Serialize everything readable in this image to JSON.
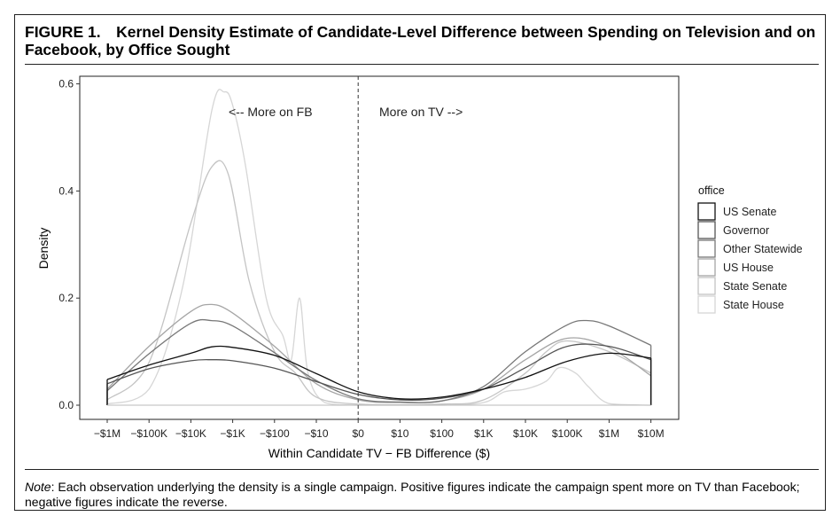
{
  "figure": {
    "title": "FIGURE 1. Kernel Density Estimate of Candidate-Level Difference between Spending on Television and on Facebook, by Office Sought",
    "note_label": "Note",
    "note_text": ": Each observation underlying the density is a single campaign. Positive figures indicate the campaign spent more on TV than Facebook; negative figures indicate the reverse."
  },
  "chart_data": {
    "type": "line",
    "title": "",
    "xlabel": "Within Candidate TV − FB Difference ($)",
    "ylabel": "Density",
    "x_tick_labels": [
      "−$1M",
      "−$100K",
      "−$10K",
      "−$1K",
      "−$100",
      "−$10",
      "$0",
      "$10",
      "$100",
      "$1K",
      "$10K",
      "$100K",
      "$1M",
      "$10M"
    ],
    "x_scale": "pseudo-log (signed), tick positions indexed 0-13",
    "xlim": [
      0,
      13
    ],
    "ylim": [
      0,
      0.6
    ],
    "y_ticks": [
      "0.0",
      "0.2",
      "0.4",
      "0.6"
    ],
    "y_tick_values": [
      0.0,
      0.2,
      0.4,
      0.6
    ],
    "reference_line": {
      "x": 6,
      "style": "dashed"
    },
    "annotations": [
      "<-- More on FB",
      "More on TV -->"
    ],
    "grid": false,
    "legend": {
      "title": "office",
      "position": "right"
    },
    "series": [
      {
        "name": "US Senate",
        "color": "#111111",
        "points": [
          [
            0,
            0.048
          ],
          [
            1,
            0.075
          ],
          [
            2,
            0.097
          ],
          [
            2.5,
            0.109
          ],
          [
            3,
            0.108
          ],
          [
            4,
            0.093
          ],
          [
            5,
            0.059
          ],
          [
            6,
            0.025
          ],
          [
            7,
            0.012
          ],
          [
            8,
            0.015
          ],
          [
            9,
            0.03
          ],
          [
            10,
            0.052
          ],
          [
            11,
            0.082
          ],
          [
            12,
            0.097
          ],
          [
            13,
            0.088
          ]
        ]
      },
      {
        "name": "Governor",
        "color": "#555555",
        "points": [
          [
            0,
            0.04
          ],
          [
            1,
            0.068
          ],
          [
            2,
            0.083
          ],
          [
            2.5,
            0.085
          ],
          [
            3,
            0.083
          ],
          [
            4,
            0.069
          ],
          [
            5,
            0.044
          ],
          [
            6,
            0.02
          ],
          [
            7,
            0.01
          ],
          [
            8,
            0.013
          ],
          [
            9,
            0.03
          ],
          [
            10,
            0.07
          ],
          [
            11,
            0.11
          ],
          [
            12,
            0.11
          ],
          [
            13,
            0.085
          ]
        ]
      },
      {
        "name": "Other Statewide",
        "color": "#777777",
        "points": [
          [
            0,
            0.027
          ],
          [
            1,
            0.096
          ],
          [
            2,
            0.153
          ],
          [
            2.5,
            0.158
          ],
          [
            3,
            0.148
          ],
          [
            4,
            0.098
          ],
          [
            5,
            0.046
          ],
          [
            6,
            0.012
          ],
          [
            7,
            0.006
          ],
          [
            8,
            0.008
          ],
          [
            9,
            0.035
          ],
          [
            10,
            0.1
          ],
          [
            11,
            0.15
          ],
          [
            11.5,
            0.158
          ],
          [
            12,
            0.148
          ],
          [
            13,
            0.112
          ]
        ]
      },
      {
        "name": "US House",
        "color": "#a5a5a5",
        "points": [
          [
            0,
            0.03
          ],
          [
            1,
            0.11
          ],
          [
            2,
            0.175
          ],
          [
            2.5,
            0.188
          ],
          [
            3,
            0.172
          ],
          [
            4,
            0.11
          ],
          [
            5,
            0.04
          ],
          [
            6,
            0.01
          ],
          [
            7,
            0.005
          ],
          [
            8,
            0.008
          ],
          [
            9,
            0.03
          ],
          [
            10,
            0.085
          ],
          [
            11,
            0.125
          ],
          [
            12,
            0.108
          ],
          [
            13,
            0.055
          ]
        ]
      },
      {
        "name": "State Senate",
        "color": "#c4c4c4",
        "points": [
          [
            0,
            0.01
          ],
          [
            1,
            0.08
          ],
          [
            2,
            0.34
          ],
          [
            2.5,
            0.445
          ],
          [
            2.9,
            0.43
          ],
          [
            3.4,
            0.23
          ],
          [
            4,
            0.1
          ],
          [
            4.5,
            0.06
          ],
          [
            5,
            0.015
          ],
          [
            6,
            0.002
          ],
          [
            8,
            0.002
          ],
          [
            9,
            0.01
          ],
          [
            10,
            0.06
          ],
          [
            10.5,
            0.1
          ],
          [
            11,
            0.12
          ],
          [
            12,
            0.1
          ],
          [
            13,
            0.06
          ]
        ]
      },
      {
        "name": "State House",
        "color": "#d6d6d6",
        "points": [
          [
            0,
            0.002
          ],
          [
            1,
            0.03
          ],
          [
            1.8,
            0.22
          ],
          [
            2.5,
            0.55
          ],
          [
            2.8,
            0.585
          ],
          [
            3.0,
            0.56
          ],
          [
            3.3,
            0.45
          ],
          [
            3.8,
            0.2
          ],
          [
            4.2,
            0.13
          ],
          [
            4.4,
            0.085
          ],
          [
            4.6,
            0.2
          ],
          [
            4.8,
            0.06
          ],
          [
            5.2,
            0.005
          ],
          [
            6,
            0.0
          ],
          [
            8,
            0.0
          ],
          [
            9,
            0.005
          ],
          [
            9.5,
            0.025
          ],
          [
            10,
            0.03
          ],
          [
            10.5,
            0.045
          ],
          [
            10.8,
            0.07
          ],
          [
            11.2,
            0.06
          ],
          [
            11.5,
            0.035
          ],
          [
            12,
            0.003
          ],
          [
            13,
            0.0
          ]
        ]
      }
    ]
  }
}
